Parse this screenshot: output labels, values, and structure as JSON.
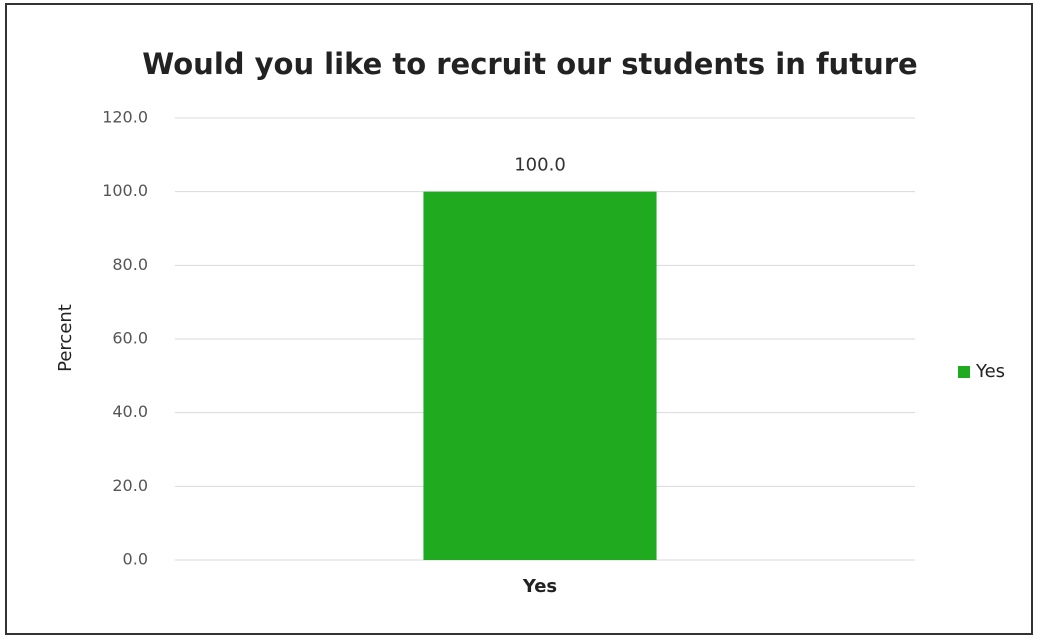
{
  "chart_data": {
    "type": "bar",
    "title": "Would you like to recruit our students in future",
    "y_label": "Percent",
    "categories": [
      "Yes"
    ],
    "series": [
      {
        "name": "Yes",
        "color": "#1faa1f",
        "values": [
          100
        ],
        "value_labels": [
          "100.0"
        ]
      }
    ],
    "ylim": [
      0,
      120
    ],
    "yticks": [
      {
        "value": 0,
        "label": "0.0"
      },
      {
        "value": 20,
        "label": "20.0"
      },
      {
        "value": 40,
        "label": "40.0"
      },
      {
        "value": 60,
        "label": "60.0"
      },
      {
        "value": 80,
        "label": "80.0"
      },
      {
        "value": 100,
        "label": "100.0"
      },
      {
        "value": 120,
        "label": "120.0"
      }
    ],
    "grid": true,
    "legend": "right"
  }
}
